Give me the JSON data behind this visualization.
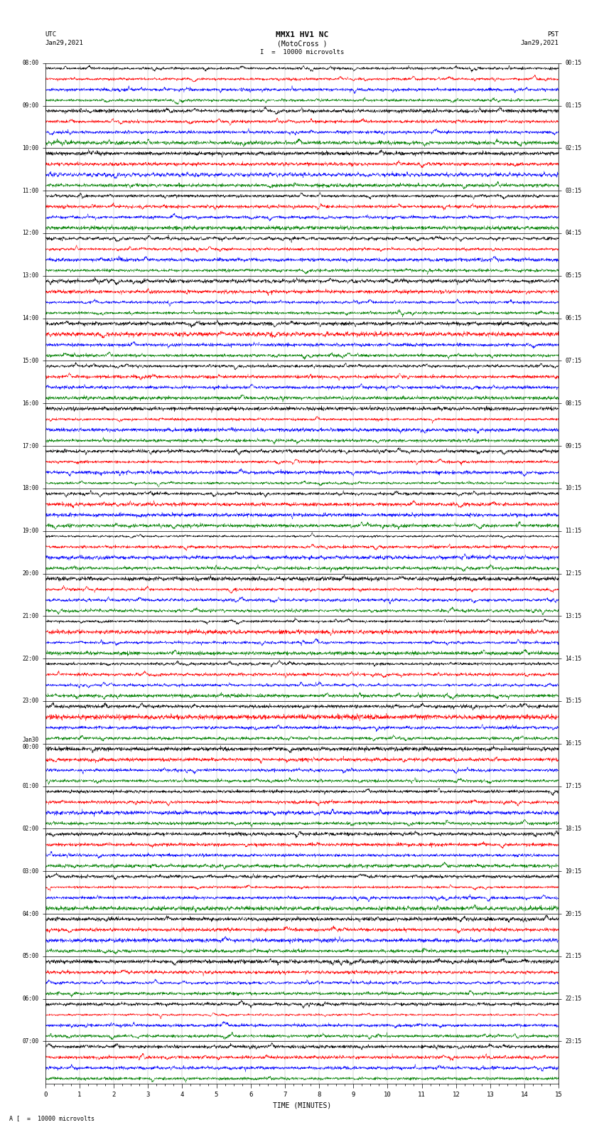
{
  "title_line1": "MMX1 HV1 NC",
  "title_line2": "(MotoCross )",
  "scale_text": "I  =  10000 microvolts",
  "left_header": "UTC",
  "right_header": "PST",
  "left_date": "Jan29,2021",
  "right_date": "Jan29,2021",
  "xlabel": "TIME (MINUTES)",
  "footer_text": "A [  =  10000 microvolts",
  "xlim": [
    0,
    15
  ],
  "colors": [
    "black",
    "red",
    "blue",
    "green"
  ],
  "utc_labels": [
    "08:00",
    "09:00",
    "10:00",
    "11:00",
    "12:00",
    "13:00",
    "14:00",
    "15:00",
    "16:00",
    "17:00",
    "18:00",
    "19:00",
    "20:00",
    "21:00",
    "22:00",
    "23:00",
    "Jan30\n00:00",
    "01:00",
    "02:00",
    "03:00",
    "04:00",
    "05:00",
    "06:00",
    "07:00"
  ],
  "pst_labels": [
    "00:15",
    "01:15",
    "02:15",
    "03:15",
    "04:15",
    "05:15",
    "06:15",
    "07:15",
    "08:15",
    "09:15",
    "10:15",
    "11:15",
    "12:15",
    "13:15",
    "14:15",
    "15:15",
    "16:15",
    "17:15",
    "18:15",
    "19:15",
    "20:15",
    "21:15",
    "22:15",
    "23:15"
  ],
  "n_hours": 24,
  "traces_per_hour": 4,
  "figsize": [
    8.5,
    16.13
  ],
  "dpi": 100
}
